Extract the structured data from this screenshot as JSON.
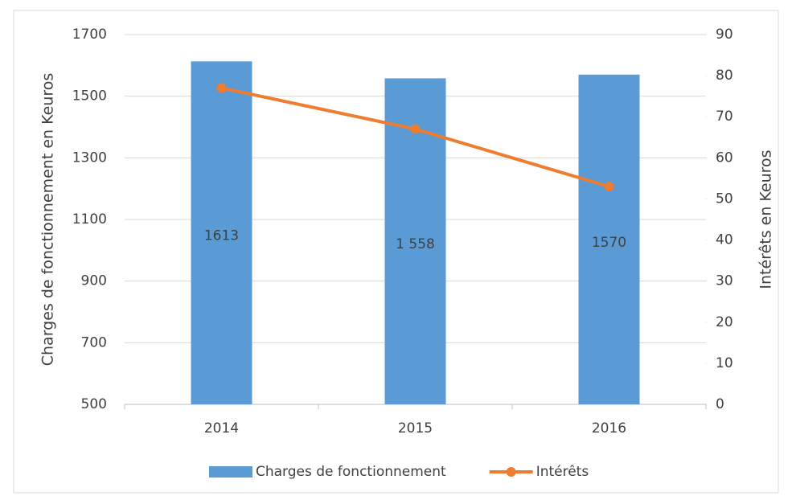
{
  "chart_data": {
    "type": "combo",
    "categories": [
      "2014",
      "2015",
      "2016"
    ],
    "series": [
      {
        "name": "Charges de fonctionnement",
        "type": "bar",
        "color": "#5b9bd5",
        "values": [
          1613,
          1558,
          1570
        ],
        "value_labels": [
          "1613",
          "1 558",
          "1570"
        ]
      },
      {
        "name": "Intérêts",
        "type": "line",
        "axis": "y2",
        "color": "#ed7d31",
        "values": [
          77,
          67,
          53
        ]
      }
    ],
    "ylabel": "Charges de fonctionnement en Keuros",
    "y2label": "Intérêts en Keuros",
    "ylim": [
      500,
      1700
    ],
    "yticks": [
      500,
      700,
      900,
      1100,
      1300,
      1500,
      1700
    ],
    "y2lim": [
      0,
      90
    ],
    "y2ticks": [
      0,
      10,
      20,
      30,
      40,
      50,
      60,
      70,
      80,
      90
    ],
    "grid": true,
    "legend": "bottom"
  }
}
